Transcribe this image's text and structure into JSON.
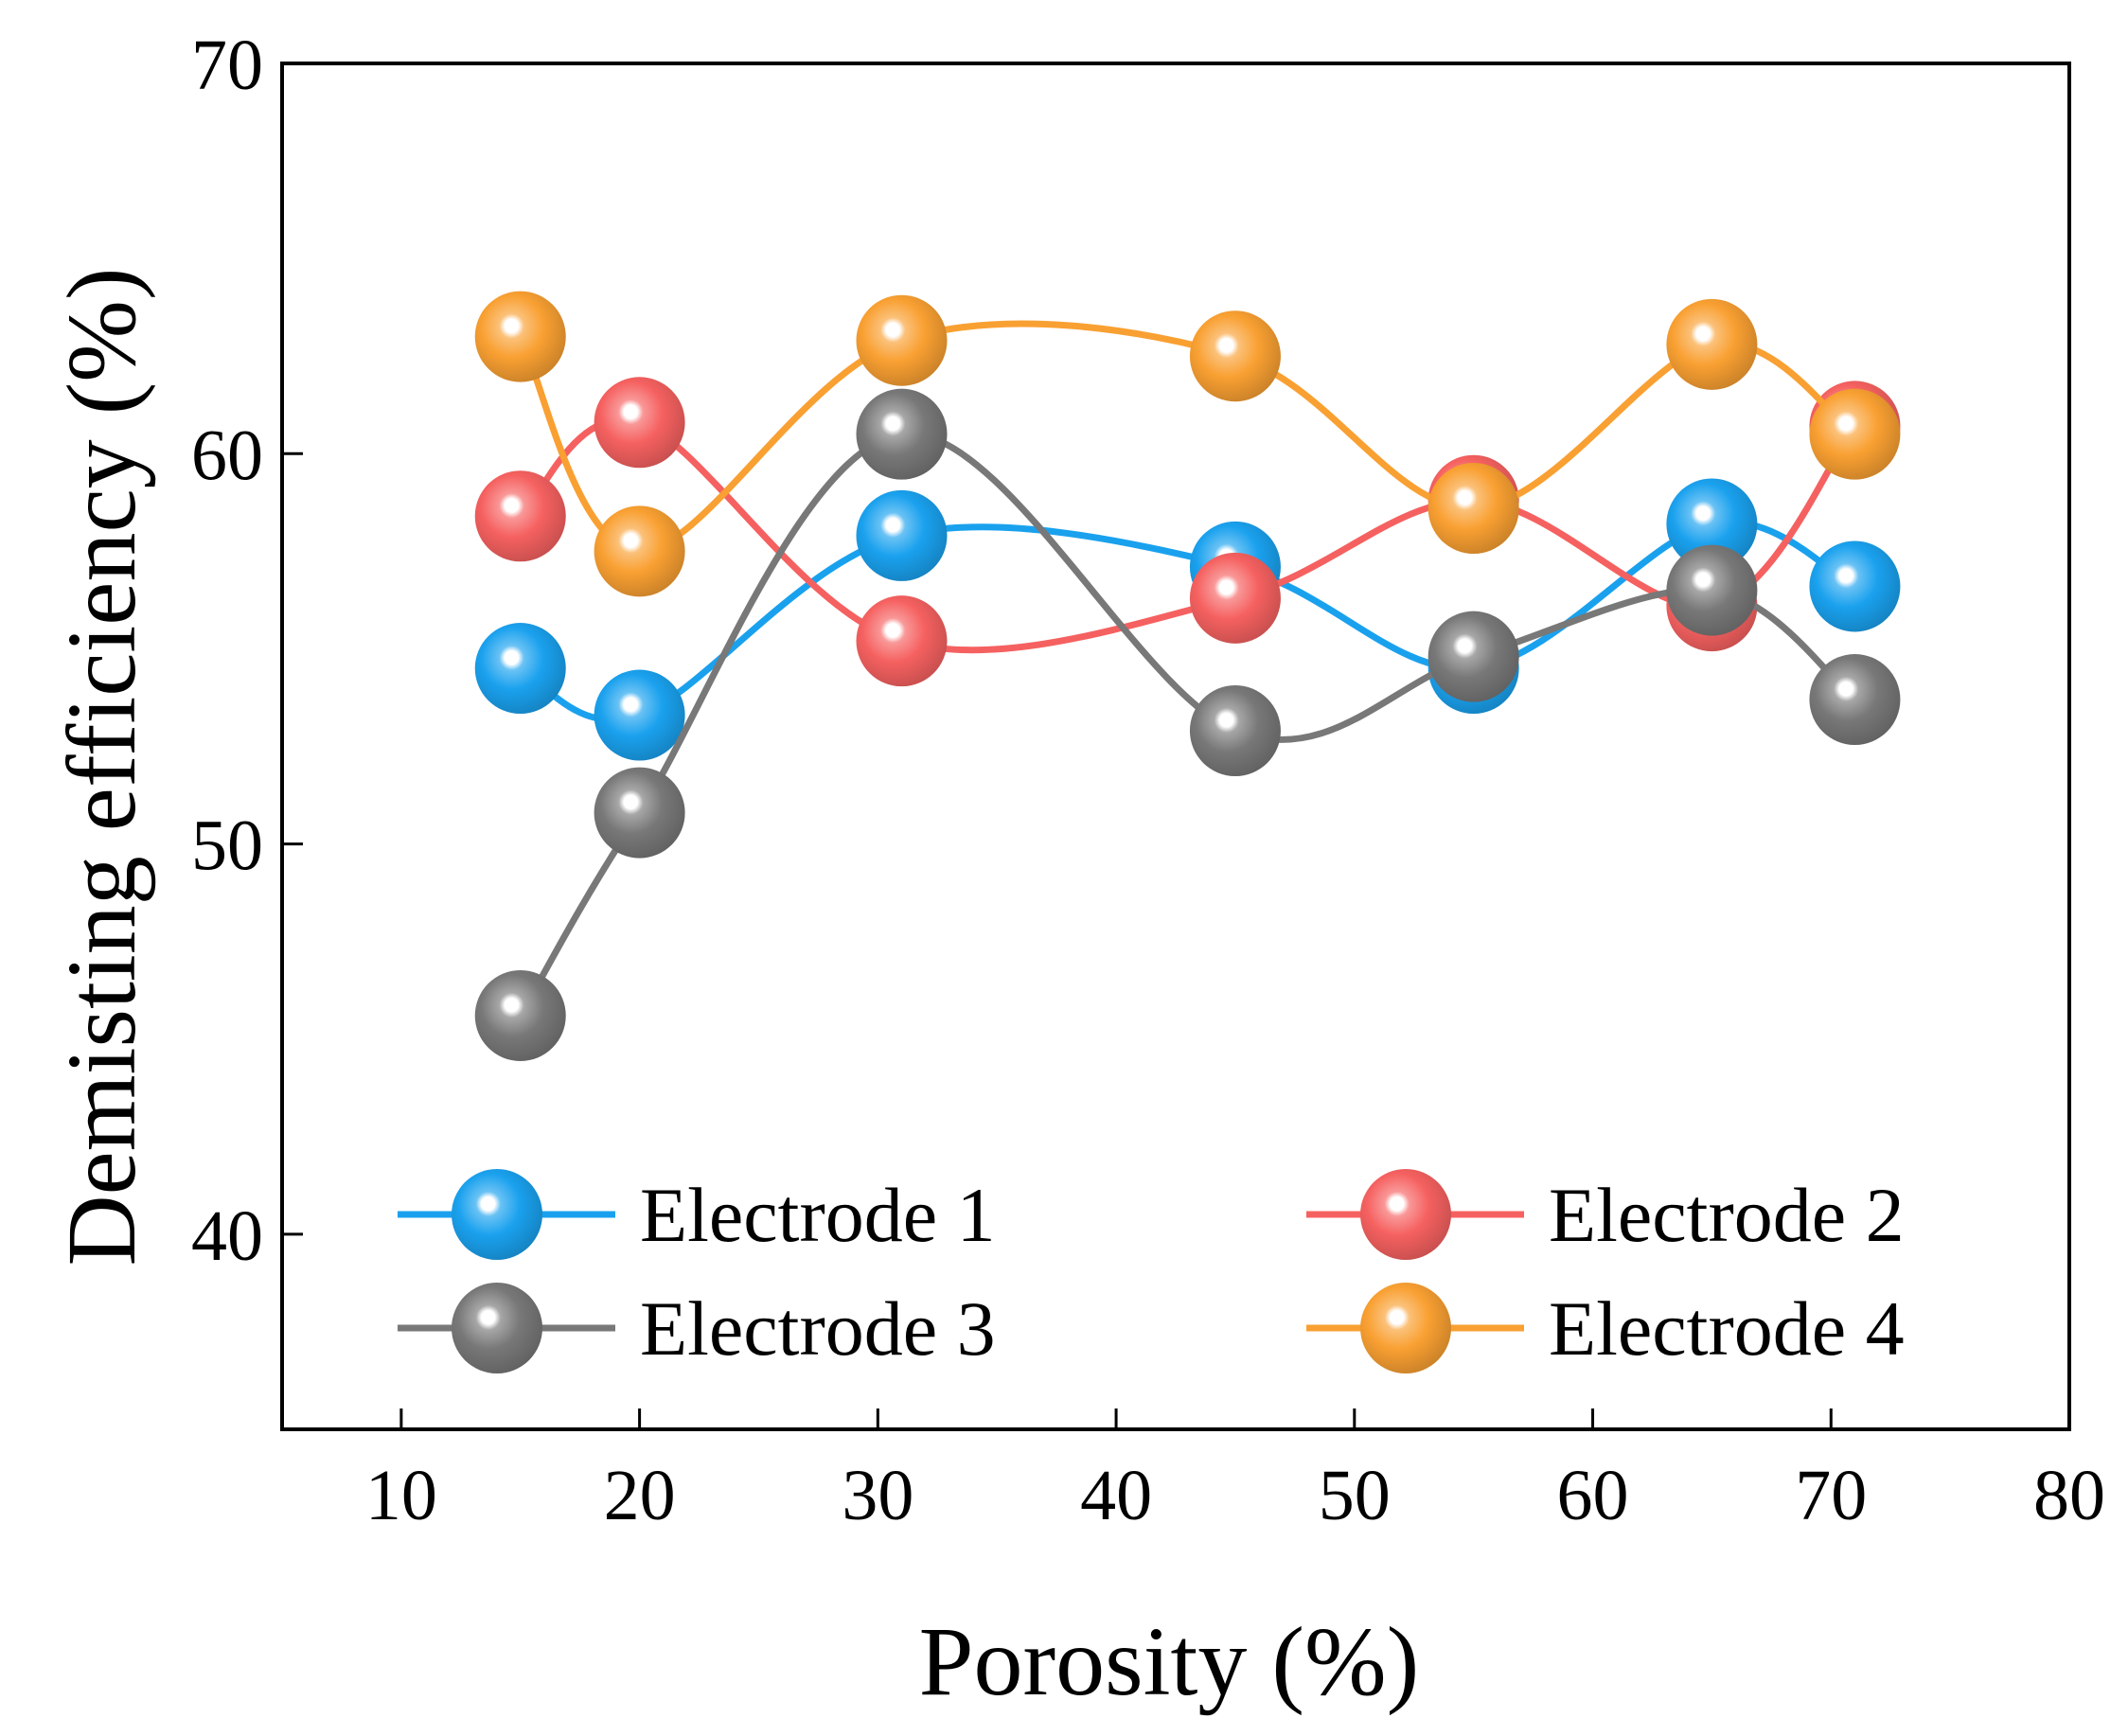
{
  "chart_data": {
    "type": "line",
    "title": "",
    "xlabel": "Porosity (%)",
    "ylabel": "Demisting efficiency (%)",
    "xlim": [
      5,
      80
    ],
    "ylim": [
      35,
      70
    ],
    "xticks": [
      10,
      20,
      30,
      40,
      50,
      60,
      70,
      80
    ],
    "yticks": [
      40,
      50,
      60,
      70
    ],
    "grid": false,
    "legend_position": "bottom",
    "x": [
      15,
      20,
      31,
      45,
      55,
      65,
      71
    ],
    "series": [
      {
        "name": "Electrode 1",
        "color": "#1aa1ee",
        "values": [
          54.5,
          53.3,
          57.9,
          57.1,
          54.5,
          58.2,
          56.6
        ]
      },
      {
        "name": "Electrode 2",
        "color": "#f56160",
        "values": [
          58.4,
          60.8,
          55.2,
          56.3,
          58.8,
          56.1,
          60.7
        ]
      },
      {
        "name": "Electrode 3",
        "color": "#787878",
        "values": [
          45.6,
          50.8,
          60.5,
          52.9,
          54.8,
          56.5,
          53.7
        ]
      },
      {
        "name": "Electrode 4",
        "color": "#f9a032",
        "values": [
          63.0,
          57.5,
          62.9,
          62.5,
          58.6,
          62.8,
          60.5
        ]
      }
    ]
  }
}
